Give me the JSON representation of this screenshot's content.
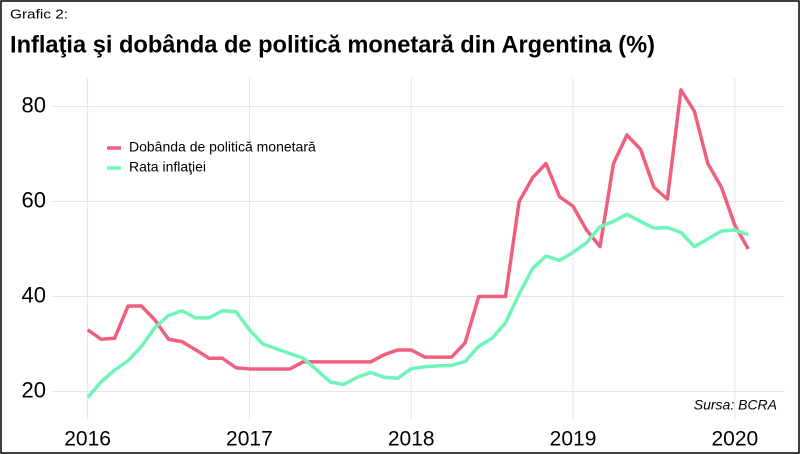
{
  "chart_data": {
    "type": "line",
    "subtitle": "Grafic 2:",
    "title": "Inflaţia şi dobânda de politică monetară din Argentina (%)",
    "source": "Sursa: BCRA",
    "x": [
      2016,
      2016.083,
      2016.167,
      2016.25,
      2016.333,
      2016.417,
      2016.5,
      2016.583,
      2016.667,
      2016.75,
      2016.833,
      2016.917,
      2017,
      2017.083,
      2017.167,
      2017.25,
      2017.333,
      2017.417,
      2017.5,
      2017.583,
      2017.667,
      2017.75,
      2017.833,
      2017.917,
      2018,
      2018.083,
      2018.167,
      2018.25,
      2018.333,
      2018.417,
      2018.5,
      2018.583,
      2018.667,
      2018.75,
      2018.833,
      2018.917,
      2019,
      2019.083,
      2019.167,
      2019.25,
      2019.333,
      2019.417,
      2019.5,
      2019.583,
      2019.667,
      2019.75,
      2019.833,
      2019.917,
      2020,
      2020.083
    ],
    "series": [
      {
        "name": "Dobânda de politică monetară",
        "color": "#f0607e",
        "values": [
          33,
          31,
          31.2,
          38,
          38,
          35,
          31,
          30.5,
          28.8,
          27,
          27,
          25,
          24.75,
          24.75,
          24.75,
          24.75,
          26.25,
          26.25,
          26.25,
          26.25,
          26.25,
          26.25,
          27.75,
          28.75,
          28.75,
          27.25,
          27.25,
          27.25,
          30.25,
          40,
          40,
          40,
          60,
          65,
          68,
          61,
          59,
          54,
          50.5,
          68,
          74,
          71,
          63,
          60.5,
          83.5,
          79,
          68,
          63,
          55,
          50
        ]
      },
      {
        "name": "Rata inflaţiei",
        "color": "#6ff5b8",
        "values": [
          18.7,
          22,
          24.5,
          26.5,
          29.5,
          33.5,
          36,
          37,
          35.5,
          35.5,
          37,
          36.8,
          33,
          30,
          29,
          28,
          27,
          24.5,
          22,
          21.5,
          23,
          24,
          23,
          22.8,
          24.8,
          25.2,
          25.4,
          25.5,
          26.3,
          29.5,
          31.2,
          34.5,
          40.5,
          45.9,
          48.5,
          47.6,
          49.3,
          51.3,
          54.7,
          55.8,
          57.3,
          55.8,
          54.4,
          54.5,
          53.5,
          50.5,
          52.1,
          53.8,
          54,
          53
        ]
      }
    ],
    "xlim": [
      2015.78,
      2020.31
    ],
    "xticks": [
      2016,
      2017,
      2018,
      2019,
      2020
    ],
    "ylim": [
      14,
      86
    ],
    "yticks": [
      20,
      40,
      60,
      80
    ],
    "grid": true,
    "legend": "top-left"
  }
}
